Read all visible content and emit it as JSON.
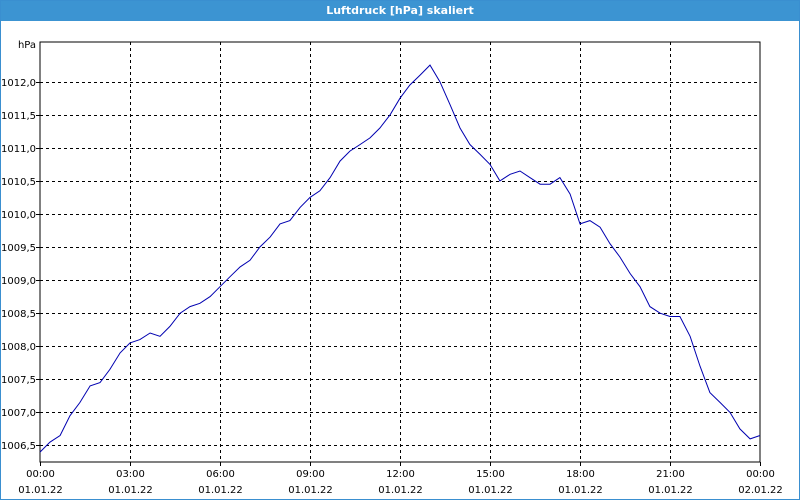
{
  "window": {
    "title": "Luftdruck [hPa] skaliert"
  },
  "colors": {
    "titlebar": "#3c94d2",
    "line": "#0000b0",
    "grid": "#000000"
  },
  "chart_data": {
    "type": "line",
    "title": "Luftdruck [hPa] skaliert",
    "ylabel": "hPa",
    "xlabel": "",
    "ylim": [
      1006.25,
      1012.6
    ],
    "xlim": [
      0,
      24
    ],
    "grid": true,
    "grid_style": "dashed",
    "y_ticks": [
      {
        "value": 1006.5,
        "label": "1006,5"
      },
      {
        "value": 1007.0,
        "label": "1007,0"
      },
      {
        "value": 1007.5,
        "label": "1007,5"
      },
      {
        "value": 1008.0,
        "label": "1008,0"
      },
      {
        "value": 1008.5,
        "label": "1008,5"
      },
      {
        "value": 1009.0,
        "label": "1009,0"
      },
      {
        "value": 1009.5,
        "label": "1009,5"
      },
      {
        "value": 1010.0,
        "label": "1010,0"
      },
      {
        "value": 1010.5,
        "label": "1010,5"
      },
      {
        "value": 1011.0,
        "label": "1011,0"
      },
      {
        "value": 1011.5,
        "label": "1011,5"
      },
      {
        "value": 1012.0,
        "label": "1012,0"
      }
    ],
    "x_ticks": [
      {
        "value": 0,
        "time": "00:00",
        "date": "01.01.22"
      },
      {
        "value": 3,
        "time": "03:00",
        "date": "01.01.22"
      },
      {
        "value": 6,
        "time": "06:00",
        "date": "01.01.22"
      },
      {
        "value": 9,
        "time": "09:00",
        "date": "01.01.22"
      },
      {
        "value": 12,
        "time": "12:00",
        "date": "01.01.22"
      },
      {
        "value": 15,
        "time": "15:00",
        "date": "01.01.22"
      },
      {
        "value": 18,
        "time": "18:00",
        "date": "01.01.22"
      },
      {
        "value": 21,
        "time": "21:00",
        "date": "01.01.22"
      },
      {
        "value": 24,
        "time": "00:00",
        "date": "02.01.22"
      }
    ],
    "series": [
      {
        "name": "",
        "x": [
          0,
          0.33,
          0.67,
          1.0,
          1.33,
          1.67,
          2.0,
          2.33,
          2.67,
          3.0,
          3.33,
          3.67,
          4.0,
          4.33,
          4.67,
          5.0,
          5.33,
          5.67,
          6.0,
          6.33,
          6.67,
          7.0,
          7.33,
          7.67,
          8.0,
          8.33,
          8.67,
          9.0,
          9.33,
          9.67,
          10.0,
          10.33,
          10.67,
          11.0,
          11.33,
          11.67,
          12.0,
          12.33,
          12.67,
          13.0,
          13.33,
          13.67,
          14.0,
          14.33,
          14.67,
          15.0,
          15.33,
          15.67,
          16.0,
          16.33,
          16.67,
          17.0,
          17.33,
          17.67,
          18.0,
          18.33,
          18.67,
          19.0,
          19.33,
          19.67,
          20.0,
          20.33,
          20.67,
          21.0,
          21.33,
          21.67,
          22.0,
          22.33,
          22.67,
          23.0,
          23.33,
          23.67,
          24.0
        ],
        "values": [
          1006.4,
          1006.55,
          1006.65,
          1006.95,
          1007.15,
          1007.4,
          1007.45,
          1007.65,
          1007.9,
          1008.05,
          1008.1,
          1008.2,
          1008.15,
          1008.3,
          1008.5,
          1008.6,
          1008.65,
          1008.75,
          1008.9,
          1009.05,
          1009.2,
          1009.3,
          1009.5,
          1009.65,
          1009.85,
          1009.9,
          1010.1,
          1010.25,
          1010.35,
          1010.55,
          1010.8,
          1010.95,
          1011.05,
          1011.15,
          1011.3,
          1011.5,
          1011.75,
          1011.95,
          1012.1,
          1012.25,
          1012.0,
          1011.65,
          1011.3,
          1011.05,
          1010.9,
          1010.75,
          1010.5,
          1010.6,
          1010.65,
          1010.55,
          1010.45,
          1010.45,
          1010.55,
          1010.3,
          1009.85,
          1009.9,
          1009.8,
          1009.55,
          1009.35,
          1009.1,
          1008.9,
          1008.6,
          1008.5,
          1008.45,
          1008.45,
          1008.15,
          1007.7,
          1007.3,
          1007.15,
          1007.0,
          1006.75,
          1006.6,
          1006.65
        ]
      }
    ]
  }
}
